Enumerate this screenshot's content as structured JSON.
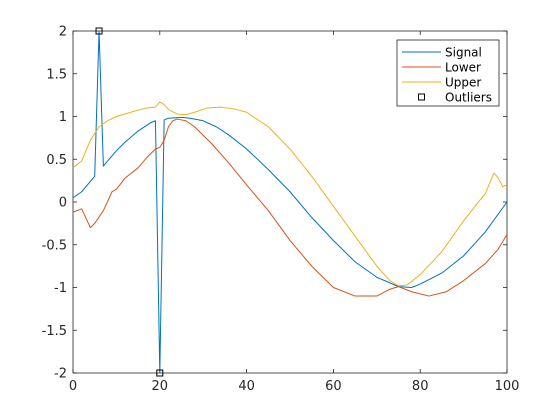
{
  "chart_data": {
    "type": "line",
    "title": "",
    "xlabel": "",
    "ylabel": "",
    "xlim": [
      0,
      100
    ],
    "ylim": [
      -2,
      2
    ],
    "xticks": [
      0,
      20,
      40,
      60,
      80,
      100
    ],
    "xtick_labels": [
      "0",
      "20",
      "40",
      "60",
      "80",
      "100"
    ],
    "yticks": [
      -2,
      -1.5,
      -1,
      -0.5,
      0,
      0.5,
      1,
      1.5,
      2
    ],
    "ytick_labels": [
      "-2",
      "-1.5",
      "-1",
      "-0.5",
      "0",
      "0.5",
      "1",
      "1.5",
      "2"
    ],
    "grid": false,
    "legend_position": "top-right",
    "series": [
      {
        "name": "Signal",
        "color": "#0072BD",
        "kind": "line",
        "points": [
          [
            0,
            0.05
          ],
          [
            2,
            0.12
          ],
          [
            5,
            0.3
          ],
          [
            6,
            2.0
          ],
          [
            7,
            0.42
          ],
          [
            10,
            0.6
          ],
          [
            12,
            0.7
          ],
          [
            15,
            0.83
          ],
          [
            18,
            0.93
          ],
          [
            19,
            0.95
          ],
          [
            20,
            -2.0
          ],
          [
            21,
            0.96
          ],
          [
            22,
            0.98
          ],
          [
            25,
            0.99
          ],
          [
            27,
            0.98
          ],
          [
            30,
            0.95
          ],
          [
            33,
            0.88
          ],
          [
            36,
            0.78
          ],
          [
            40,
            0.62
          ],
          [
            45,
            0.38
          ],
          [
            50,
            0.12
          ],
          [
            55,
            -0.18
          ],
          [
            60,
            -0.45
          ],
          [
            65,
            -0.7
          ],
          [
            70,
            -0.88
          ],
          [
            75,
            -0.99
          ],
          [
            78,
            -1.0
          ],
          [
            80,
            -0.96
          ],
          [
            85,
            -0.83
          ],
          [
            90,
            -0.63
          ],
          [
            95,
            -0.35
          ],
          [
            100,
            0.0
          ]
        ]
      },
      {
        "name": "Lower",
        "color": "#D95319",
        "kind": "line",
        "points": [
          [
            0,
            -0.12
          ],
          [
            2,
            -0.08
          ],
          [
            4,
            -0.3
          ],
          [
            5,
            -0.25
          ],
          [
            7,
            -0.1
          ],
          [
            9,
            0.12
          ],
          [
            10,
            0.15
          ],
          [
            12,
            0.28
          ],
          [
            15,
            0.4
          ],
          [
            17,
            0.52
          ],
          [
            19,
            0.62
          ],
          [
            20,
            0.64
          ],
          [
            21,
            0.72
          ],
          [
            22,
            0.88
          ],
          [
            23,
            0.95
          ],
          [
            24,
            0.97
          ],
          [
            26,
            0.95
          ],
          [
            28,
            0.88
          ],
          [
            32,
            0.68
          ],
          [
            36,
            0.45
          ],
          [
            40,
            0.2
          ],
          [
            45,
            -0.1
          ],
          [
            50,
            -0.45
          ],
          [
            55,
            -0.75
          ],
          [
            60,
            -1.0
          ],
          [
            65,
            -1.1
          ],
          [
            70,
            -1.1
          ],
          [
            73,
            -1.02
          ],
          [
            75,
            -0.99
          ],
          [
            78,
            -1.05
          ],
          [
            82,
            -1.1
          ],
          [
            86,
            -1.05
          ],
          [
            90,
            -0.92
          ],
          [
            95,
            -0.72
          ],
          [
            98,
            -0.55
          ],
          [
            100,
            -0.38
          ]
        ]
      },
      {
        "name": "Upper",
        "color": "#EDB120",
        "kind": "line",
        "points": [
          [
            0,
            0.4
          ],
          [
            2,
            0.48
          ],
          [
            4,
            0.72
          ],
          [
            6,
            0.88
          ],
          [
            8,
            0.95
          ],
          [
            10,
            1.0
          ],
          [
            14,
            1.06
          ],
          [
            17,
            1.1
          ],
          [
            19,
            1.11
          ],
          [
            20,
            1.17
          ],
          [
            21,
            1.14
          ],
          [
            22,
            1.08
          ],
          [
            24,
            1.03
          ],
          [
            26,
            1.02
          ],
          [
            28,
            1.05
          ],
          [
            31,
            1.1
          ],
          [
            34,
            1.11
          ],
          [
            37,
            1.09
          ],
          [
            40,
            1.05
          ],
          [
            45,
            0.88
          ],
          [
            50,
            0.62
          ],
          [
            55,
            0.3
          ],
          [
            60,
            -0.05
          ],
          [
            65,
            -0.4
          ],
          [
            70,
            -0.75
          ],
          [
            73,
            -0.92
          ],
          [
            75,
            -0.98
          ],
          [
            77,
            -0.97
          ],
          [
            80,
            -0.85
          ],
          [
            85,
            -0.58
          ],
          [
            90,
            -0.22
          ],
          [
            95,
            0.1
          ],
          [
            97,
            0.34
          ],
          [
            98,
            0.28
          ],
          [
            99,
            0.18
          ],
          [
            100,
            0.2
          ]
        ]
      },
      {
        "name": "Outliers",
        "color": "#000000",
        "kind": "marker",
        "points": [
          [
            6,
            2.0
          ],
          [
            20,
            -2.0
          ]
        ]
      }
    ]
  }
}
